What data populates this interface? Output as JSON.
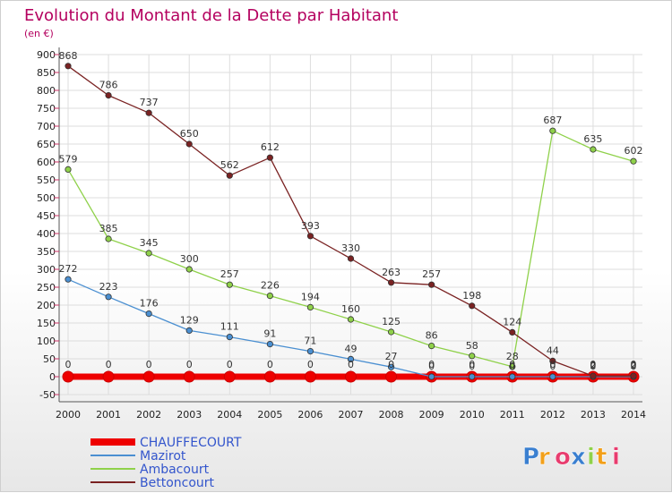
{
  "colors": {
    "title": "#b4005f",
    "grid": "#dddddd",
    "axis": "#555555",
    "legend_text": "#3355cc"
  },
  "chart_data": {
    "type": "line",
    "title": "Evolution du Montant de la Dette par Habitant",
    "subtitle": "(en €)",
    "ylim": [
      -50,
      900
    ],
    "yticks": [
      -50,
      0,
      50,
      100,
      150,
      200,
      250,
      300,
      350,
      400,
      450,
      500,
      550,
      600,
      650,
      700,
      750,
      800,
      850,
      900
    ],
    "grid": true,
    "legend_position": "bottom-left",
    "categories": [
      "2000",
      "2001",
      "2002",
      "2003",
      "2004",
      "2005",
      "2006",
      "2007",
      "2008",
      "2009",
      "2010",
      "2011",
      "2012",
      "2013",
      "2014"
    ],
    "series": [
      {
        "name": "CHAUFFECOURT",
        "color": "#ee0000",
        "style": "thick",
        "values": [
          0,
          0,
          0,
          0,
          0,
          0,
          0,
          0,
          0,
          0,
          0,
          0,
          0,
          0,
          0
        ],
        "labels": [
          "0",
          "0",
          "0",
          "0",
          "0",
          "0",
          "0",
          "0",
          "0",
          "0",
          "0",
          "0",
          "0",
          "0",
          "0"
        ]
      },
      {
        "name": "Mazirot",
        "color": "#4a8fd1",
        "style": "normal",
        "values": [
          272,
          223,
          176,
          129,
          111,
          91,
          71,
          49,
          27,
          0,
          0,
          0,
          0,
          0,
          0
        ],
        "labels": [
          "272",
          "223",
          "176",
          "129",
          "111",
          "91",
          "71",
          "49",
          "27",
          "0",
          "0",
          "0",
          "0",
          "0",
          "0"
        ]
      },
      {
        "name": "Ambacourt",
        "color": "#8fd14a",
        "style": "normal",
        "values": [
          579,
          385,
          345,
          300,
          257,
          226,
          194,
          160,
          125,
          86,
          58,
          28,
          687,
          635,
          602
        ],
        "labels": [
          "579",
          "385",
          "345",
          "300",
          "257",
          "226",
          "194",
          "160",
          "125",
          "86",
          "58",
          "28",
          "687",
          "635",
          "602"
        ]
      },
      {
        "name": "Bettoncourt",
        "color": "#7a2222",
        "style": "normal",
        "values": [
          868,
          786,
          737,
          650,
          562,
          612,
          393,
          330,
          263,
          257,
          198,
          124,
          44,
          2,
          2
        ],
        "labels": [
          "868",
          "786",
          "737",
          "650",
          "562",
          "612",
          "393",
          "330",
          "263",
          "257",
          "198",
          "124",
          "44",
          "2",
          "2"
        ]
      }
    ]
  },
  "watermark": "Proxiti"
}
